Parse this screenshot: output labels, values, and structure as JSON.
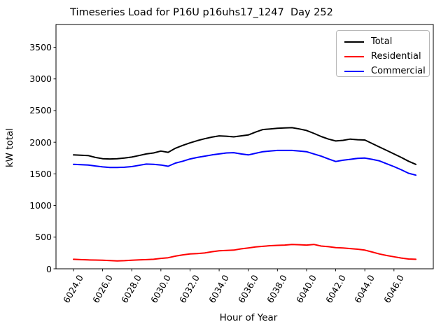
{
  "chart_data": {
    "type": "line",
    "title": "Timeseries Load for P16U p16uhs17_1247  Day 252",
    "xlabel": "Hour of Year",
    "ylabel": "kW total",
    "xlim": [
      6022.8,
      6048.7
    ],
    "ylim": [
      0,
      3860
    ],
    "grid": false,
    "legend_position": "upper right",
    "x_ticks": [
      6024,
      6026,
      6028,
      6030,
      6032,
      6034,
      6036,
      6038,
      6040,
      6042,
      6044,
      6046
    ],
    "x_tick_labels": [
      "6024.0",
      "6026.0",
      "6028.0",
      "6030.0",
      "6032.0",
      "6034.0",
      "6036.0",
      "6038.0",
      "6040.0",
      "6042.0",
      "6044.0",
      "6046.0"
    ],
    "y_ticks": [
      0,
      500,
      1000,
      1500,
      2000,
      2500,
      3000,
      3500
    ],
    "y_tick_labels": [
      "0",
      "500",
      "1000",
      "1500",
      "2000",
      "2500",
      "3000",
      "3500"
    ],
    "x": [
      6024.0,
      6024.5,
      6025.0,
      6025.5,
      6026.0,
      6026.5,
      6027.0,
      6027.5,
      6028.0,
      6028.5,
      6029.0,
      6029.5,
      6030.0,
      6030.5,
      6031.0,
      6031.5,
      6032.0,
      6032.5,
      6033.0,
      6033.5,
      6034.0,
      6034.5,
      6035.0,
      6035.5,
      6036.0,
      6036.5,
      6037.0,
      6037.5,
      6038.0,
      6038.5,
      6039.0,
      6039.5,
      6040.0,
      6040.5,
      6041.0,
      6041.5,
      6042.0,
      6042.5,
      6043.0,
      6043.5,
      6044.0,
      6044.5,
      6045.0,
      6045.5,
      6046.0,
      6046.5,
      6047.0,
      6047.5
    ],
    "series": [
      {
        "name": "Total",
        "color": "#000000",
        "values": [
          1800,
          1795,
          1790,
          1760,
          1740,
          1735,
          1740,
          1750,
          1765,
          1790,
          1815,
          1830,
          1860,
          1840,
          1905,
          1950,
          1990,
          2025,
          2055,
          2080,
          2100,
          2095,
          2085,
          2100,
          2115,
          2160,
          2200,
          2210,
          2220,
          2225,
          2230,
          2210,
          2185,
          2140,
          2090,
          2050,
          2020,
          2030,
          2050,
          2040,
          2035,
          1980,
          1925,
          1870,
          1815,
          1760,
          1700,
          1650
        ]
      },
      {
        "name": "Residential",
        "color": "#ff0000",
        "values": [
          150,
          145,
          140,
          138,
          135,
          130,
          125,
          128,
          135,
          140,
          145,
          150,
          165,
          175,
          200,
          220,
          235,
          240,
          250,
          270,
          285,
          290,
          295,
          315,
          330,
          345,
          355,
          365,
          370,
          375,
          385,
          380,
          375,
          385,
          360,
          350,
          335,
          330,
          320,
          310,
          295,
          265,
          235,
          210,
          190,
          170,
          155,
          150
        ]
      },
      {
        "name": "Commercial",
        "color": "#0000ff",
        "values": [
          1650,
          1645,
          1640,
          1625,
          1610,
          1600,
          1600,
          1605,
          1615,
          1635,
          1655,
          1650,
          1640,
          1620,
          1670,
          1700,
          1735,
          1760,
          1780,
          1800,
          1815,
          1830,
          1835,
          1815,
          1800,
          1825,
          1850,
          1860,
          1870,
          1870,
          1870,
          1860,
          1850,
          1815,
          1780,
          1735,
          1695,
          1715,
          1730,
          1745,
          1750,
          1730,
          1705,
          1660,
          1615,
          1565,
          1510,
          1480
        ]
      }
    ]
  }
}
